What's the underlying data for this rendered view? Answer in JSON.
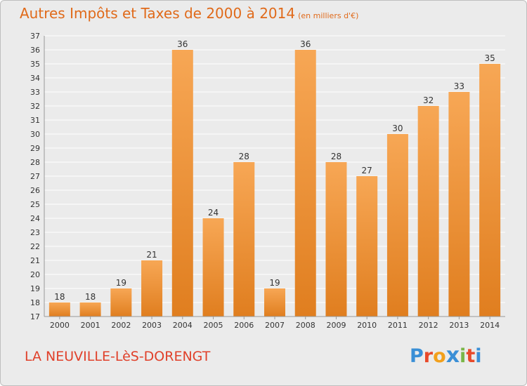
{
  "header": {
    "title": "Autres Impôts et Taxes de 2000 à 2014",
    "unit": "(en milliers d'€)"
  },
  "footer": {
    "commune": "LA NEUVILLE-LèS-DORENGT",
    "logo_text": "Proxiti",
    "logo_colors": [
      "#3a8fd6",
      "#e8492a",
      "#f2a01c",
      "#3a8fd6",
      "#7ab648",
      "#e8492a",
      "#3a8fd6"
    ]
  },
  "colors": {
    "bar_top": "#f7a755",
    "bar_bottom": "#e07e1f",
    "grid": "#ffffff",
    "axis_text": "#333333"
  },
  "chart_data": {
    "type": "bar",
    "categories": [
      "2000",
      "2001",
      "2002",
      "2003",
      "2004",
      "2005",
      "2006",
      "2007",
      "2008",
      "2009",
      "2010",
      "2011",
      "2012",
      "2013",
      "2014"
    ],
    "values": [
      18,
      18,
      19,
      21,
      36,
      24,
      28,
      19,
      36,
      28,
      27,
      30,
      32,
      33,
      35
    ],
    "ylim": [
      17,
      37
    ],
    "yticks": [
      17,
      18,
      19,
      20,
      21,
      22,
      23,
      24,
      25,
      26,
      27,
      28,
      29,
      30,
      31,
      32,
      33,
      34,
      35,
      36,
      37
    ],
    "grid": true,
    "data_labels": true
  }
}
